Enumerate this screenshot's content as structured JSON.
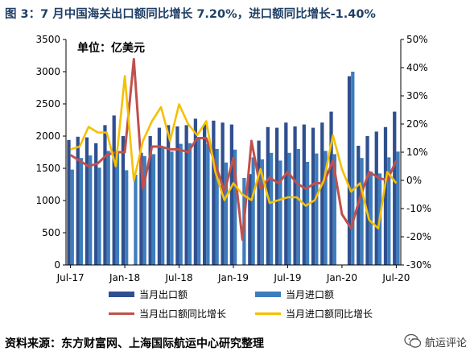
{
  "title": "图 3：7 月中国海关出口额同比增长 7.20%，进口额同比增长-1.40%",
  "source": "资料来源：东方财富网、上海国际航运中心研究整理",
  "watermark": {
    "text": "航运评论",
    "icon": "wechat-bubble-icon"
  },
  "colors": {
    "export_bar": "#2f4f8f",
    "import_bar": "#3d7dbd",
    "export_line": "#c0504d",
    "import_line": "#f5c000",
    "title": "#1f3f66"
  },
  "chart_data": {
    "type": "bar",
    "unit_label": "单位：亿美元",
    "x": [
      "Jul-17",
      "Aug-17",
      "Sep-17",
      "Oct-17",
      "Nov-17",
      "Dec-17",
      "Jan-18",
      "Feb-18",
      "Mar-18",
      "Apr-18",
      "May-18",
      "Jun-18",
      "Jul-18",
      "Aug-18",
      "Sep-18",
      "Oct-18",
      "Nov-18",
      "Dec-18",
      "Jan-19",
      "Feb-19",
      "Mar-19",
      "Apr-19",
      "May-19",
      "Jun-19",
      "Jul-19",
      "Aug-19",
      "Sep-19",
      "Oct-19",
      "Nov-19",
      "Dec-19",
      "Jan-20",
      "Feb-20",
      "Mar-20",
      "Apr-20",
      "May-20",
      "Jun-20",
      "Jul-20"
    ],
    "x_tick_labels": [
      "Jul-17",
      "Jan-18",
      "Jul-18",
      "Jan-19",
      "Jul-19",
      "Jan-20",
      "Jul-20"
    ],
    "ylim_left": [
      0,
      3500
    ],
    "yticks_left": [
      0,
      500,
      1000,
      1500,
      2000,
      2500,
      3000,
      3500
    ],
    "ylim_right": [
      -30,
      50
    ],
    "yticks_right": [
      "-30%",
      "-20%",
      "-10%",
      "0%",
      "10%",
      "20%",
      "30%",
      "40%",
      "50%"
    ],
    "legend_position": "bottom",
    "series": [
      {
        "name": "当月出口额",
        "kind": "bar",
        "axis": "left",
        "values": [
          1940,
          1990,
          1980,
          1890,
          2170,
          2320,
          2000,
          null,
          1740,
          2000,
          2130,
          2170,
          2150,
          2170,
          2270,
          2180,
          2240,
          2210,
          2180,
          null,
          1410,
          1930,
          2140,
          2130,
          2210,
          2150,
          2180,
          2130,
          2210,
          2380,
          null,
          2930,
          1850,
          2000,
          2070,
          2140,
          2380
        ]
      },
      {
        "name": "当月进口额",
        "kind": "bar",
        "axis": "left",
        "values": [
          1480,
          1660,
          1700,
          1510,
          1770,
          1770,
          1470,
          1400,
          1690,
          1720,
          1830,
          1760,
          1880,
          1890,
          1960,
          1880,
          1800,
          1590,
          1790,
          1350,
          1670,
          1640,
          1740,
          1620,
          1740,
          1800,
          1600,
          1730,
          1770,
          1720,
          null,
          3000,
          1660,
          1450,
          1420,
          1670,
          1760
        ]
      },
      {
        "name": "当月出口额同比增长",
        "kind": "line",
        "axis": "right",
        "values": [
          9,
          7,
          5,
          6,
          9,
          10,
          10,
          43,
          -3,
          12,
          12,
          11,
          11,
          10,
          15,
          15,
          6,
          -4,
          8,
          -21,
          14,
          -3,
          1,
          -1,
          3,
          -1,
          -3,
          -1,
          -1,
          7,
          -12,
          -17,
          -6,
          3,
          1,
          0,
          7
        ]
      },
      {
        "name": "当月进口额同比增长",
        "kind": "line",
        "axis": "right",
        "values": [
          11,
          12,
          19,
          17,
          17,
          5,
          37,
          0,
          14,
          21,
          26,
          14,
          27,
          20,
          16,
          21,
          3,
          -7,
          -1,
          -5,
          -7,
          4,
          -8,
          -7,
          -6,
          -6,
          -9,
          -7,
          0,
          16,
          4,
          -4,
          -1,
          -14,
          -17,
          3,
          -1
        ]
      }
    ]
  }
}
